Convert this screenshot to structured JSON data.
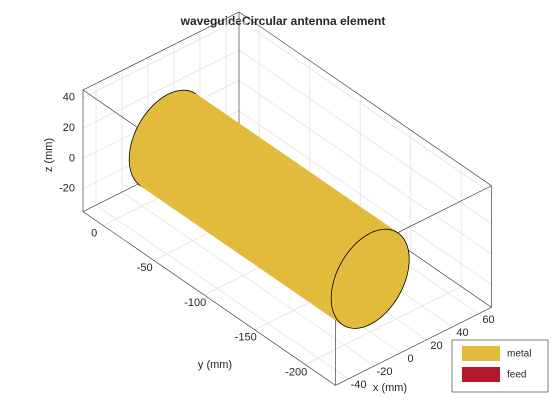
{
  "chart_data": {
    "type": "cylinder3d",
    "title": "waveguideCircular antenna element",
    "xlabel": "x (mm)",
    "ylabel": "y (mm)",
    "zlabel": "z (mm)",
    "xlim": [
      -50,
      70
    ],
    "ylim": [
      -230,
      20
    ],
    "zlim": [
      -35,
      45
    ],
    "xticks": [
      -40,
      -20,
      0,
      20,
      40,
      60
    ],
    "yticks": [
      -200,
      -150,
      -100,
      -50,
      0
    ],
    "zticks": [
      -20,
      0,
      20,
      40
    ],
    "grid": true,
    "cylinder": {
      "radius": 30,
      "y": [
        0,
        -200
      ]
    },
    "series": [
      {
        "name": "metal",
        "color": "#e2bb3d"
      },
      {
        "name": "feed",
        "color": "#b3182b"
      }
    ],
    "legend": "lower right"
  }
}
